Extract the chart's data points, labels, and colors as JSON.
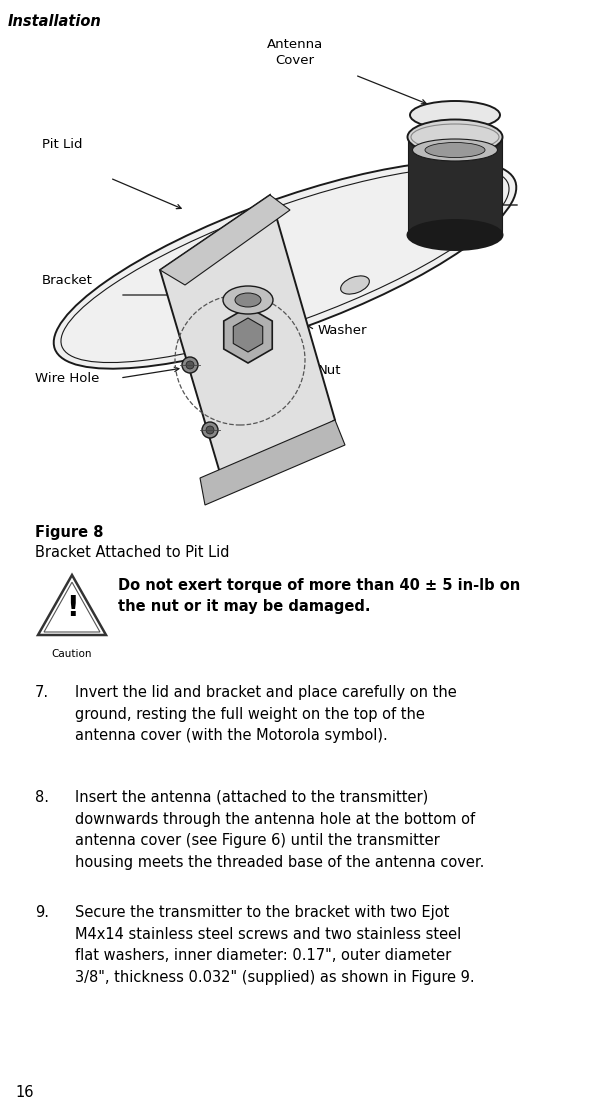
{
  "header": "Installation",
  "page_number": "16",
  "figure_label": "Figure 8",
  "figure_caption": "Bracket Attached to Pit Lid",
  "caution_text": "Do not exert torque of more than 40 ± 5 in-lb on\nthe nut or it may be damaged.",
  "caution_label": "Caution",
  "items": [
    {
      "num": "7.",
      "text": "Invert the lid and bracket and place carefully on the\nground, resting the full weight on the top of the\nantenna cover (with the Motorola symbol)."
    },
    {
      "num": "8.",
      "text": "Insert the antenna (attached to the transmitter)\ndownwards through the antenna hole at the bottom of\nantenna cover (see Figure 6) until the transmitter\nhousing meets the threaded base of the antenna cover."
    },
    {
      "num": "9.",
      "text": "Secure the transmitter to the bracket with two Ejot\nM4x14 stainless steel screws and two stainless steel\nflat washers, inner diameter: 0.17\", outer diameter\n3/8\", thickness 0.032\" (supplied) as shown in Figure 9."
    }
  ],
  "bg_color": "#ffffff",
  "text_color": "#000000"
}
